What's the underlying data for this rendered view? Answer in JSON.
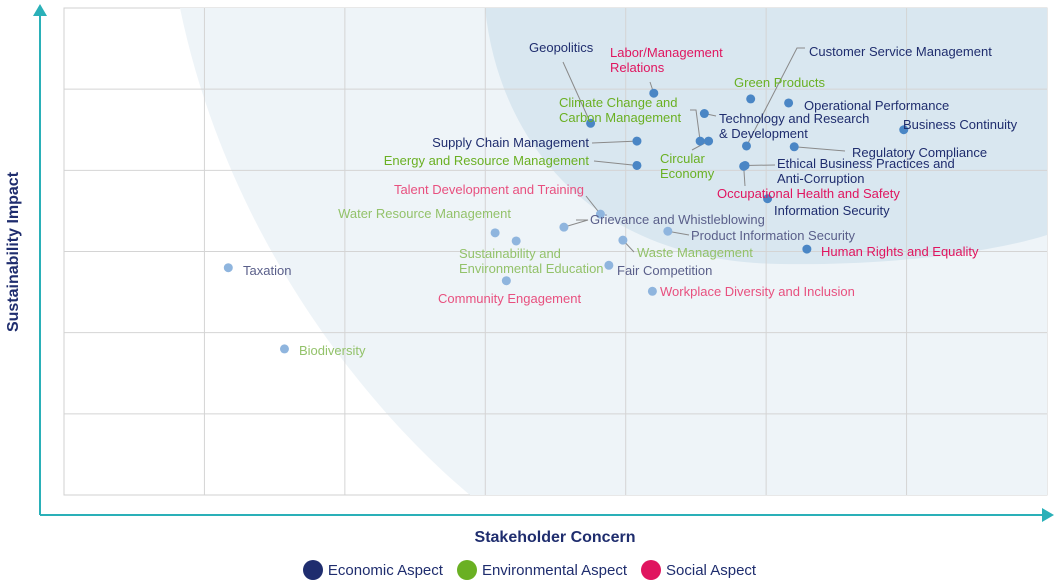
{
  "chart_data": {
    "type": "scatter",
    "title": "",
    "xlabel": "Stakeholder Concern",
    "ylabel": "Sustainability Impact",
    "xlim": [
      0,
      7
    ],
    "ylim": [
      0,
      6
    ],
    "grid": true,
    "tick_labels_shown": false,
    "legend_placement": "bottom",
    "categories": [
      {
        "key": "economic",
        "name": "Economic Aspect",
        "color": "#1f2d6e"
      },
      {
        "key": "environmental",
        "name": "Environmental Aspect",
        "color": "#6ab023"
      },
      {
        "key": "social",
        "name": "Social Aspect",
        "color": "#e0155f"
      }
    ],
    "points": [
      {
        "label": "Geopolitics",
        "category": "economic",
        "x": 3.75,
        "y": 4.58,
        "highlighted": true
      },
      {
        "label": "Labor/Management Relations",
        "category": "social",
        "x": 4.2,
        "y": 4.95,
        "highlighted": true
      },
      {
        "label": "Climate Change and Carbon Management",
        "category": "environmental",
        "x": 4.53,
        "y": 4.36,
        "highlighted": true
      },
      {
        "label": "Circular Economy",
        "category": "environmental",
        "x": 4.59,
        "y": 4.36,
        "highlighted": true
      },
      {
        "label": "Green Products",
        "category": "environmental",
        "x": 4.89,
        "y": 4.88,
        "highlighted": true
      },
      {
        "label": "Operational Performance",
        "category": "economic",
        "x": 5.16,
        "y": 4.83,
        "highlighted": true
      },
      {
        "label": "Technology and Research & Development",
        "category": "economic",
        "x": 4.56,
        "y": 4.7,
        "highlighted": true
      },
      {
        "label": "Customer Service Management",
        "category": "economic",
        "x": 4.86,
        "y": 4.3,
        "highlighted": true
      },
      {
        "label": "Business Continuity",
        "category": "economic",
        "x": 5.98,
        "y": 4.5,
        "highlighted": true
      },
      {
        "label": "Regulatory Compliance",
        "category": "economic",
        "x": 5.2,
        "y": 4.29,
        "highlighted": true
      },
      {
        "label": "Ethical Business Practices and Anti-Corruption",
        "category": "economic",
        "x": 4.85,
        "y": 4.06,
        "highlighted": true
      },
      {
        "label": "Occupational Health and Safety",
        "category": "social",
        "x": 4.84,
        "y": 4.05,
        "highlighted": true
      },
      {
        "label": "Information Security",
        "category": "economic",
        "x": 5.01,
        "y": 3.65,
        "highlighted": true
      },
      {
        "label": "Human Rights and Equality",
        "category": "social",
        "x": 5.29,
        "y": 3.03,
        "highlighted": true
      },
      {
        "label": "Supply Chain Management",
        "category": "economic",
        "x": 4.08,
        "y": 4.36,
        "highlighted": true
      },
      {
        "label": "Energy and Resource Management",
        "category": "environmental",
        "x": 4.08,
        "y": 4.06,
        "highlighted": true
      },
      {
        "label": "Talent Development and Training",
        "category": "social",
        "x": 3.82,
        "y": 3.46,
        "highlighted": false
      },
      {
        "label": "Grievance and Whistleblowing",
        "category": "economic",
        "x": 3.56,
        "y": 3.3,
        "highlighted": false
      },
      {
        "label": "Water Resource Management",
        "category": "environmental",
        "x": 3.07,
        "y": 3.23,
        "highlighted": false
      },
      {
        "label": "Sustainability and Environmental Education",
        "category": "environmental",
        "x": 3.22,
        "y": 3.13,
        "highlighted": false
      },
      {
        "label": "Waste Management",
        "category": "environmental",
        "x": 3.98,
        "y": 3.14,
        "highlighted": false
      },
      {
        "label": "Product Information Security",
        "category": "economic",
        "x": 4.3,
        "y": 3.25,
        "highlighted": false
      },
      {
        "label": "Fair Competition",
        "category": "economic",
        "x": 3.88,
        "y": 2.83,
        "highlighted": false
      },
      {
        "label": "Community Engagement",
        "category": "social",
        "x": 3.15,
        "y": 2.64,
        "highlighted": false
      },
      {
        "label": "Workplace Diversity and Inclusion",
        "category": "social",
        "x": 4.19,
        "y": 2.51,
        "highlighted": false
      },
      {
        "label": "Taxation",
        "category": "economic",
        "x": 1.17,
        "y": 2.8,
        "highlighted": false
      },
      {
        "label": "Biodiversity",
        "category": "environmental",
        "x": 1.57,
        "y": 1.8,
        "highlighted": false
      }
    ],
    "axis_color": "#2ab0b8"
  }
}
